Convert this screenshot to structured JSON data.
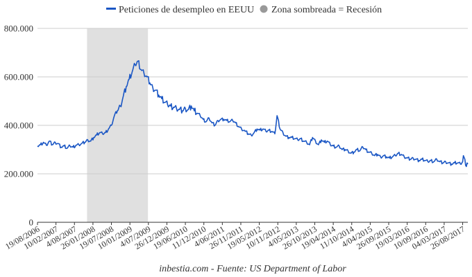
{
  "chart_data": {
    "type": "line",
    "title": "",
    "xlabel": "",
    "ylabel": "",
    "ylim": [
      0,
      800000
    ],
    "ytick_values": [
      0,
      200000,
      400000,
      600000,
      800000
    ],
    "ytick_labels": [
      "0",
      "200.000",
      "400.000",
      "600.000",
      "800.000"
    ],
    "xlim": [
      "2006-08-19",
      "2017-10-14"
    ],
    "xtick_labels": [
      "19/08/2006",
      "10/02/2007",
      "4/08/2007",
      "26/01/2008",
      "19/07/2008",
      "10/01/2009",
      "4/07/2009",
      "26/12/2009",
      "19/06/2010",
      "11/12/2010",
      "4/06/2011",
      "26/11/2011",
      "19/05/2012",
      "10/11/2012",
      "4/05/2013",
      "26/10/2013",
      "19/04/2014",
      "11/10/2014",
      "4/04/2015",
      "26/09/2015",
      "19/03/2016",
      "10/09/2016",
      "04/03/2017",
      "26/08/2017"
    ],
    "xtick_dates": [
      "2006-08-19",
      "2007-02-10",
      "2007-08-04",
      "2008-01-26",
      "2008-07-19",
      "2009-01-10",
      "2009-07-04",
      "2009-12-26",
      "2010-06-19",
      "2010-12-11",
      "2011-06-04",
      "2011-11-26",
      "2012-05-19",
      "2012-11-10",
      "2013-05-04",
      "2013-10-26",
      "2014-04-19",
      "2014-10-11",
      "2015-04-04",
      "2015-09-26",
      "2016-03-19",
      "2016-09-10",
      "2017-03-04",
      "2017-08-26"
    ],
    "grid": true,
    "legend_position": "top-center",
    "shaded_region": {
      "start": "2007-12-01",
      "end": "2009-06-30",
      "color": "#e0e0e0"
    },
    "series": [
      {
        "name": "Peticiones de desempleo en EEUU",
        "color": "#1a56c4",
        "points": [
          [
            "2006-08-19",
            315000
          ],
          [
            "2006-09-16",
            320000
          ],
          [
            "2006-10-14",
            330000
          ],
          [
            "2006-11-11",
            318000
          ],
          [
            "2006-12-09",
            335000
          ],
          [
            "2007-01-06",
            320000
          ],
          [
            "2007-02-03",
            330000
          ],
          [
            "2007-03-03",
            325000
          ],
          [
            "2007-03-31",
            310000
          ],
          [
            "2007-04-28",
            315000
          ],
          [
            "2007-05-26",
            305000
          ],
          [
            "2007-06-23",
            315000
          ],
          [
            "2007-07-21",
            310000
          ],
          [
            "2007-08-18",
            318000
          ],
          [
            "2007-09-15",
            320000
          ],
          [
            "2007-10-13",
            325000
          ],
          [
            "2007-11-10",
            330000
          ],
          [
            "2007-12-08",
            340000
          ],
          [
            "2008-01-05",
            335000
          ],
          [
            "2008-02-02",
            350000
          ],
          [
            "2008-03-01",
            360000
          ],
          [
            "2008-03-29",
            370000
          ],
          [
            "2008-04-26",
            365000
          ],
          [
            "2008-05-24",
            370000
          ],
          [
            "2008-06-21",
            385000
          ],
          [
            "2008-07-19",
            400000
          ],
          [
            "2008-08-16",
            440000
          ],
          [
            "2008-09-13",
            460000
          ],
          [
            "2008-10-11",
            480000
          ],
          [
            "2008-11-08",
            520000
          ],
          [
            "2008-12-06",
            560000
          ],
          [
            "2009-01-03",
            590000
          ],
          [
            "2009-01-31",
            620000
          ],
          [
            "2009-02-28",
            650000
          ],
          [
            "2009-03-28",
            665000
          ],
          [
            "2009-04-25",
            630000
          ],
          [
            "2009-05-23",
            615000
          ],
          [
            "2009-06-20",
            600000
          ],
          [
            "2009-07-18",
            575000
          ],
          [
            "2009-08-15",
            555000
          ],
          [
            "2009-09-12",
            545000
          ],
          [
            "2009-10-10",
            525000
          ],
          [
            "2009-11-07",
            510000
          ],
          [
            "2009-12-05",
            495000
          ],
          [
            "2010-01-02",
            485000
          ],
          [
            "2010-01-30",
            480000
          ],
          [
            "2010-02-27",
            475000
          ],
          [
            "2010-03-27",
            470000
          ],
          [
            "2010-04-24",
            465000
          ],
          [
            "2010-05-22",
            460000
          ],
          [
            "2010-06-19",
            470000
          ],
          [
            "2010-07-17",
            465000
          ],
          [
            "2010-08-14",
            480000
          ],
          [
            "2010-09-11",
            460000
          ],
          [
            "2010-10-09",
            450000
          ],
          [
            "2010-11-06",
            440000
          ],
          [
            "2010-12-04",
            425000
          ],
          [
            "2011-01-01",
            415000
          ],
          [
            "2011-01-29",
            430000
          ],
          [
            "2011-02-26",
            410000
          ],
          [
            "2011-03-26",
            400000
          ],
          [
            "2011-04-23",
            420000
          ],
          [
            "2011-05-21",
            425000
          ],
          [
            "2011-06-18",
            425000
          ],
          [
            "2011-07-16",
            420000
          ],
          [
            "2011-08-13",
            415000
          ],
          [
            "2011-09-10",
            420000
          ],
          [
            "2011-10-08",
            410000
          ],
          [
            "2011-11-05",
            395000
          ],
          [
            "2011-12-03",
            385000
          ],
          [
            "2012-01-07",
            375000
          ],
          [
            "2012-02-04",
            365000
          ],
          [
            "2012-03-03",
            360000
          ],
          [
            "2012-03-31",
            370000
          ],
          [
            "2012-04-28",
            385000
          ],
          [
            "2012-05-26",
            380000
          ],
          [
            "2012-06-23",
            385000
          ],
          [
            "2012-07-21",
            375000
          ],
          [
            "2012-08-18",
            380000
          ],
          [
            "2012-09-15",
            375000
          ],
          [
            "2012-10-13",
            365000
          ],
          [
            "2012-11-03",
            440000
          ],
          [
            "2012-12-01",
            385000
          ],
          [
            "2012-12-29",
            370000
          ],
          [
            "2013-01-26",
            355000
          ],
          [
            "2013-02-23",
            350000
          ],
          [
            "2013-03-23",
            350000
          ],
          [
            "2013-04-20",
            345000
          ],
          [
            "2013-05-18",
            340000
          ],
          [
            "2013-06-15",
            345000
          ],
          [
            "2013-07-13",
            335000
          ],
          [
            "2013-08-10",
            330000
          ],
          [
            "2013-09-07",
            320000
          ],
          [
            "2013-10-05",
            350000
          ],
          [
            "2013-11-02",
            335000
          ],
          [
            "2013-11-30",
            320000
          ],
          [
            "2013-12-28",
            340000
          ],
          [
            "2014-01-25",
            330000
          ],
          [
            "2014-02-22",
            335000
          ],
          [
            "2014-03-22",
            320000
          ],
          [
            "2014-04-19",
            315000
          ],
          [
            "2014-05-17",
            310000
          ],
          [
            "2014-06-14",
            315000
          ],
          [
            "2014-07-12",
            300000
          ],
          [
            "2014-08-09",
            300000
          ],
          [
            "2014-09-06",
            295000
          ],
          [
            "2014-10-04",
            285000
          ],
          [
            "2014-11-01",
            290000
          ],
          [
            "2014-11-29",
            300000
          ],
          [
            "2014-12-27",
            295000
          ],
          [
            "2015-01-24",
            310000
          ],
          [
            "2015-02-21",
            300000
          ],
          [
            "2015-03-21",
            290000
          ],
          [
            "2015-04-18",
            285000
          ],
          [
            "2015-05-16",
            275000
          ],
          [
            "2015-06-13",
            280000
          ],
          [
            "2015-07-11",
            270000
          ],
          [
            "2015-08-08",
            275000
          ],
          [
            "2015-09-05",
            270000
          ],
          [
            "2015-10-03",
            265000
          ],
          [
            "2015-10-31",
            270000
          ],
          [
            "2015-11-28",
            275000
          ],
          [
            "2015-12-26",
            285000
          ],
          [
            "2016-01-23",
            280000
          ],
          [
            "2016-02-20",
            270000
          ],
          [
            "2016-03-19",
            265000
          ],
          [
            "2016-04-16",
            260000
          ],
          [
            "2016-05-14",
            265000
          ],
          [
            "2016-06-11",
            260000
          ],
          [
            "2016-07-09",
            255000
          ],
          [
            "2016-08-06",
            260000
          ],
          [
            "2016-09-03",
            255000
          ],
          [
            "2016-10-01",
            250000
          ],
          [
            "2016-10-29",
            255000
          ],
          [
            "2016-11-26",
            250000
          ],
          [
            "2016-12-24",
            260000
          ],
          [
            "2017-01-21",
            250000
          ],
          [
            "2017-02-18",
            245000
          ],
          [
            "2017-03-18",
            250000
          ],
          [
            "2017-04-15",
            245000
          ],
          [
            "2017-05-13",
            240000
          ],
          [
            "2017-06-10",
            245000
          ],
          [
            "2017-07-08",
            245000
          ],
          [
            "2017-08-05",
            240000
          ],
          [
            "2017-08-26",
            250000
          ],
          [
            "2017-09-02",
            275000
          ],
          [
            "2017-09-16",
            260000
          ],
          [
            "2017-09-23",
            235000
          ],
          [
            "2017-09-30",
            230000
          ],
          [
            "2017-10-07",
            245000
          ],
          [
            "2017-10-14",
            240000
          ]
        ]
      }
    ]
  },
  "legend": {
    "series_label": "Peticiones de desempleo en EEUU",
    "shade_label": "Zona sombreada = Recesión",
    "series_color": "#1a56c4",
    "shade_color": "#999999"
  },
  "caption": "inbestia.com - Fuente: US Department of Labor"
}
